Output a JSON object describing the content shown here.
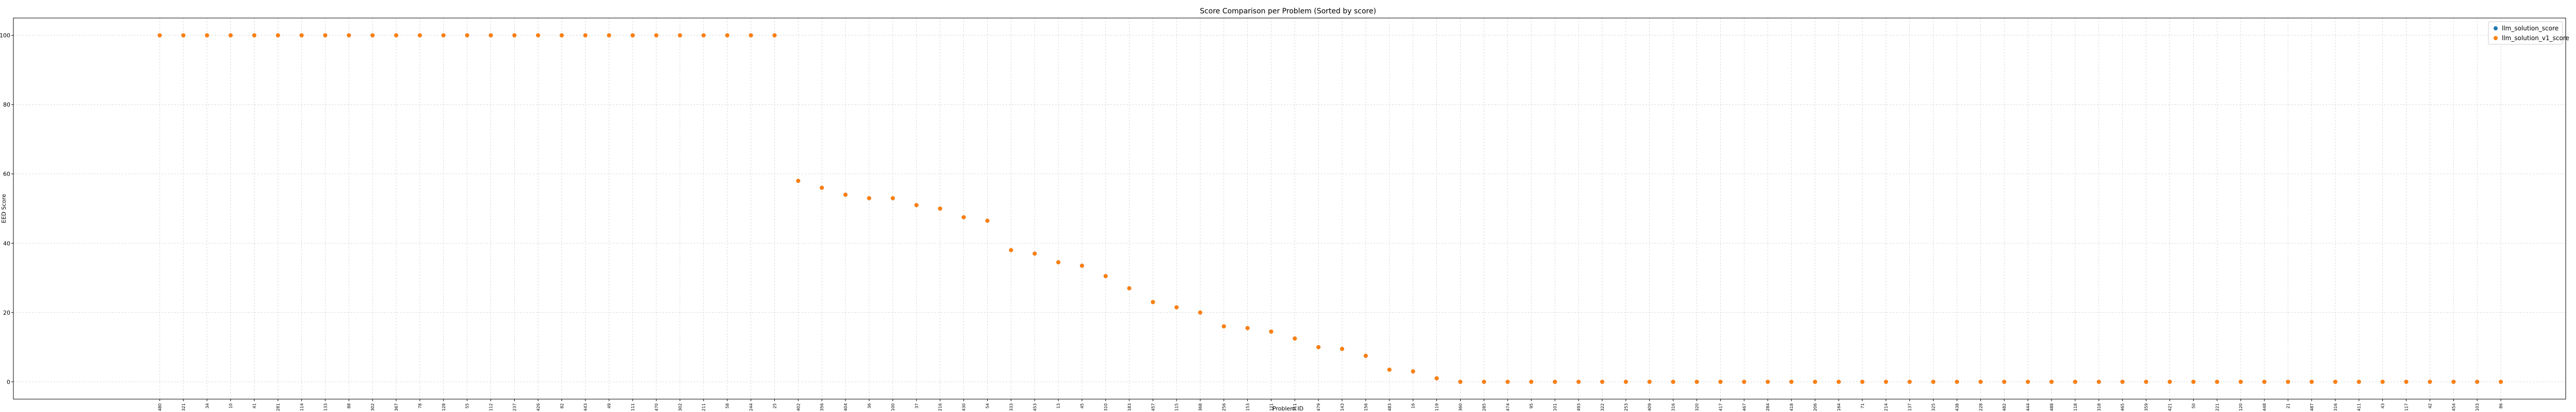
{
  "chart_data": {
    "type": "scatter",
    "title": "Score Comparison per Problem (Sorted by score)",
    "xlabel": "Problem ID",
    "ylabel": "EED Score",
    "ylim": [
      -5,
      105
    ],
    "yticks": [
      0,
      20,
      40,
      60,
      80,
      100
    ],
    "grid": true,
    "legend_position": "top-right",
    "categories": [
      "480",
      "321",
      "34",
      "10",
      "41",
      "281",
      "114",
      "133",
      "88",
      "302",
      "367",
      "78",
      "128",
      "55",
      "112",
      "237",
      "426",
      "82",
      "443",
      "49",
      "111",
      "470",
      "302",
      "211",
      "58",
      "244",
      "25",
      "402",
      "356",
      "404",
      "36",
      "100",
      "37",
      "216",
      "430",
      "54",
      "333",
      "453",
      "13",
      "45",
      "310",
      "183",
      "457",
      "115",
      "368",
      "256",
      "153",
      "121",
      "311",
      "479",
      "143",
      "156",
      "483",
      "16",
      "119",
      "360",
      "285",
      "474",
      "95",
      "101",
      "493",
      "322",
      "253",
      "409",
      "316",
      "320",
      "417",
      "467",
      "284",
      "418",
      "206",
      "164",
      "71",
      "214",
      "137",
      "325",
      "438",
      "228",
      "482",
      "444",
      "488",
      "118",
      "318",
      "465",
      "359",
      "421",
      "50",
      "221",
      "120",
      "448",
      "21",
      "487",
      "316",
      "411",
      "43",
      "117",
      "42",
      "454",
      "103",
      "86"
    ],
    "series": [
      {
        "name": "llm_solution_score",
        "color": "#1f77b4",
        "values": [
          100,
          100,
          100,
          100,
          100,
          100,
          100,
          100,
          100,
          100,
          100,
          100,
          100,
          100,
          100,
          100,
          100,
          100,
          100,
          100,
          100,
          100,
          100,
          100,
          100,
          100,
          100,
          58,
          56,
          54,
          53,
          53,
          51,
          50,
          47.5,
          46.5,
          38,
          37,
          34.5,
          33.5,
          30.5,
          27,
          23,
          21.5,
          20,
          16,
          15.5,
          14.5,
          12.5,
          10,
          9.5,
          7.5,
          3.5,
          3,
          1,
          0,
          0,
          0,
          0,
          0,
          0,
          0,
          0,
          0,
          0,
          0,
          0,
          0,
          0,
          0,
          0,
          0,
          0,
          0,
          0,
          0,
          0,
          0,
          0,
          0,
          0,
          0,
          0,
          0,
          0,
          0,
          0,
          0,
          0,
          0,
          0,
          0,
          0,
          0,
          0,
          0,
          0,
          0,
          0,
          0
        ]
      },
      {
        "name": "llm_solution_v1_score",
        "color": "#ff7f0e",
        "values": [
          100,
          100,
          100,
          100,
          100,
          100,
          100,
          100,
          100,
          100,
          100,
          100,
          100,
          100,
          100,
          100,
          100,
          100,
          100,
          100,
          100,
          100,
          100,
          100,
          100,
          100,
          100,
          58,
          56,
          54,
          53,
          53,
          51,
          50,
          47.5,
          46.5,
          38,
          37,
          34.5,
          33.5,
          30.5,
          27,
          23,
          21.5,
          20,
          16,
          15.5,
          14.5,
          12.5,
          10,
          9.5,
          7.5,
          3.5,
          3,
          1,
          0,
          0,
          0,
          0,
          0,
          0,
          0,
          0,
          0,
          0,
          0,
          0,
          0,
          0,
          0,
          0,
          0,
          0,
          0,
          0,
          0,
          0,
          0,
          0,
          0,
          0,
          0,
          0,
          0,
          0,
          0,
          0,
          0,
          0,
          0,
          0,
          0,
          0,
          0,
          0,
          0,
          0,
          0,
          0,
          0
        ]
      }
    ]
  }
}
